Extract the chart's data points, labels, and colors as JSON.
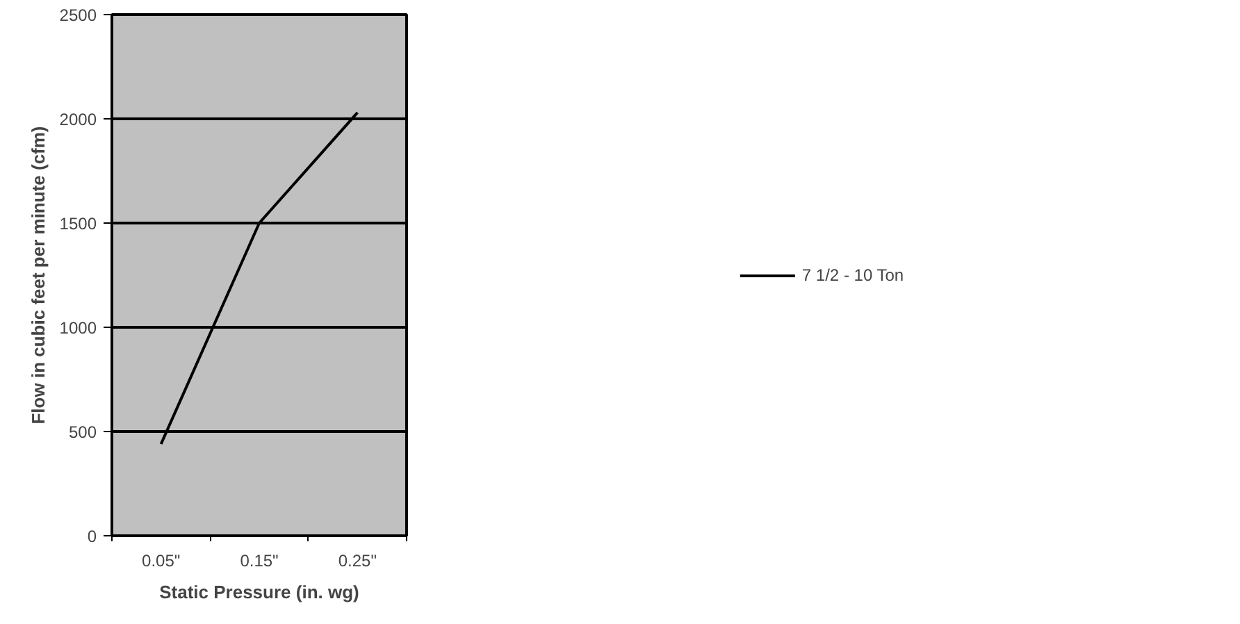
{
  "chart_data": {
    "type": "line",
    "xlabel": "Static Pressure (in. wg)",
    "ylabel": "Flow in cubic feet per minute (cfm)",
    "categories": [
      "0.05\"",
      "0.15\"",
      "0.25\""
    ],
    "series": [
      {
        "name": "7 1/2 - 10 Ton",
        "color": "#000000",
        "values": [
          440,
          1500,
          2030
        ]
      }
    ],
    "ylim": [
      0,
      2500
    ],
    "yticks": [
      0,
      500,
      1000,
      1500,
      2000,
      2500
    ],
    "grid": "y",
    "legend": "right",
    "marker": "none",
    "line_style": "solid"
  }
}
